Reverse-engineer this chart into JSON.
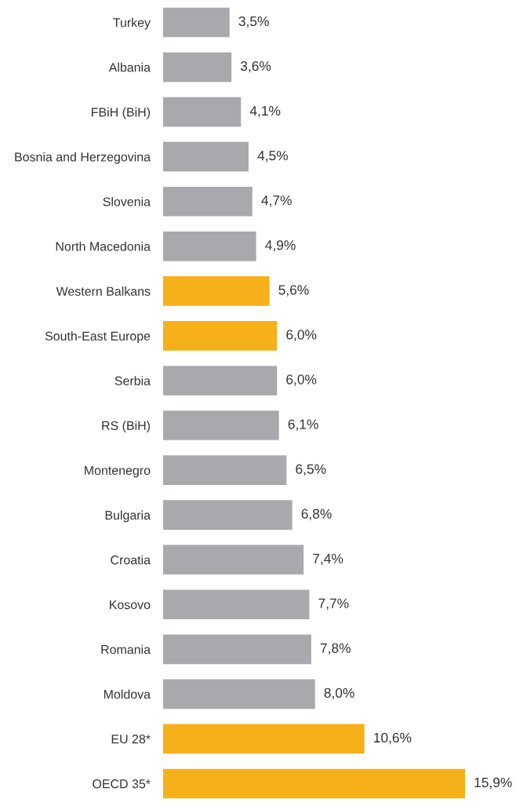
{
  "chart_data": {
    "type": "bar",
    "orientation": "horizontal",
    "categories": [
      "Turkey",
      "Albania",
      "FBiH (BiH)",
      "Bosnia and Herzegovina",
      "Slovenia",
      "North Macedonia",
      "Western Balkans",
      "South-East Europe",
      "Serbia",
      "RS (BiH)",
      "Montenegro",
      "Bulgaria",
      "Croatia",
      "Kosovo",
      "Romania",
      "Moldova",
      "EU 28*",
      "OECD 35*"
    ],
    "values": [
      3.5,
      3.6,
      4.1,
      4.5,
      4.7,
      4.9,
      5.6,
      6.0,
      6.0,
      6.1,
      6.5,
      6.8,
      7.4,
      7.7,
      7.8,
      8.0,
      10.6,
      15.9
    ],
    "value_labels": [
      "3,5%",
      "3,6%",
      "4,1%",
      "4,5%",
      "4,7%",
      "4,9%",
      "5,6%",
      "6,0%",
      "6,0%",
      "6,1%",
      "6,5%",
      "6,8%",
      "7,4%",
      "7,7%",
      "7,8%",
      "8,0%",
      "10,6%",
      "15,9%"
    ],
    "colors": [
      "#a7a9ac",
      "#a7a9ac",
      "#a7a9ac",
      "#a7a9ac",
      "#a7a9ac",
      "#a7a9ac",
      "#f5b01a",
      "#f5b01a",
      "#a7a9ac",
      "#a7a9ac",
      "#a7a9ac",
      "#a7a9ac",
      "#a7a9ac",
      "#a7a9ac",
      "#a7a9ac",
      "#a7a9ac",
      "#f5b01a",
      "#f5b01a"
    ],
    "tick_labels": "y",
    "grid": false,
    "legend": false
  }
}
